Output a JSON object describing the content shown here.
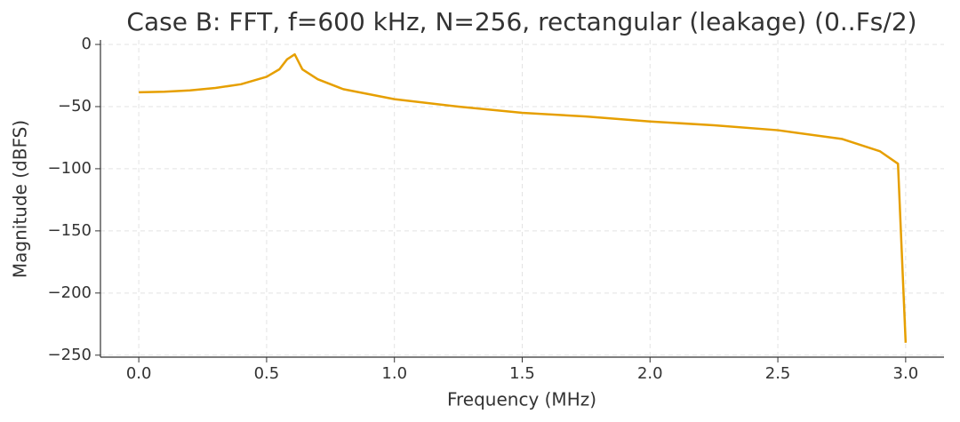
{
  "chart_data": {
    "type": "line",
    "title": "Case B: FFT, f=600 kHz, N=256, rectangular (leakage) (0..Fs/2)",
    "x_label": "Frequency (MHz)",
    "y_label": "Magnitude (dBFS)",
    "x": [
      0,
      0.1,
      0.2,
      0.3,
      0.4,
      0.5,
      0.55,
      0.58,
      0.61,
      0.64,
      0.7,
      0.8,
      1.0,
      1.25,
      1.5,
      1.75,
      2.0,
      2.25,
      2.5,
      2.75,
      2.9,
      2.97,
      3.0
    ],
    "series": [
      {
        "name": "Magnitude",
        "color": "#e69f00",
        "values": [
          -38.5,
          -38,
          -37,
          -35,
          -32,
          -26,
          -20,
          -12,
          -8,
          -20,
          -28,
          -36,
          -44,
          -50,
          -55,
          -58,
          -62,
          -65,
          -69,
          -76,
          -86,
          -96,
          -240
        ]
      }
    ],
    "xlim": [
      -0.15,
      3.15
    ],
    "ylim": [
      -251.6,
      3.6
    ],
    "xticks": [
      {
        "value": 0,
        "label": "0.0"
      },
      0.5,
      {
        "value": 1,
        "label": "1.0"
      },
      1.5,
      {
        "value": 2,
        "label": "2.0"
      },
      2.5,
      {
        "value": 3,
        "label": "3.0"
      }
    ],
    "yticks": [
      {
        "value": -250,
        "label": "−250"
      },
      {
        "value": -200,
        "label": "−200"
      },
      {
        "value": -150,
        "label": "−150"
      },
      {
        "value": -100,
        "label": "−100"
      },
      {
        "value": -50,
        "label": "−50"
      },
      0
    ],
    "grid": true
  }
}
